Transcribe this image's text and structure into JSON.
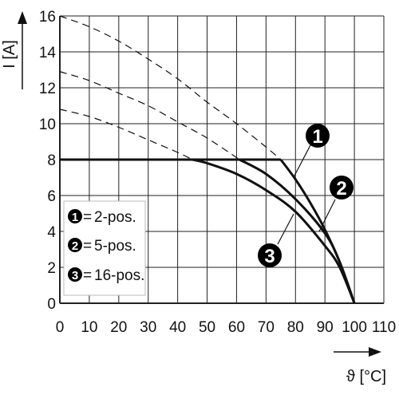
{
  "chart_data": {
    "type": "line",
    "xlabel": "ϑ [°C]",
    "ylabel": "I [A]",
    "xlim": [
      0,
      110
    ],
    "ylim": [
      0,
      16
    ],
    "x_ticks": [
      "0",
      "10",
      "20",
      "30",
      "40",
      "50",
      "60",
      "70",
      "80",
      "90",
      "100",
      "110"
    ],
    "y_ticks": [
      "0",
      "2",
      "4",
      "6",
      "8",
      "10",
      "12",
      "14",
      "16"
    ],
    "grid": true,
    "legend_position": "bottom-left",
    "series": [
      {
        "name": "2-pos.",
        "marker": "1",
        "x": [
          0,
          75,
          80,
          85,
          90,
          95,
          100
        ],
        "y": [
          8,
          8,
          6.9,
          5.6,
          4.1,
          2.3,
          0
        ],
        "extrapolated": {
          "x": [
            0,
            10,
            20,
            30,
            40,
            50,
            60,
            70,
            75
          ],
          "y": [
            16,
            15.4,
            14.6,
            13.6,
            12.5,
            11.2,
            10,
            8.7,
            8
          ]
        }
      },
      {
        "name": "5-pos.",
        "marker": "2",
        "x": [
          0,
          61,
          70,
          80,
          90,
          95,
          100
        ],
        "y": [
          8,
          8,
          7.2,
          5.8,
          3.9,
          2.3,
          0
        ],
        "extrapolated": {
          "x": [
            0,
            10,
            20,
            30,
            40,
            50,
            61
          ],
          "y": [
            12.9,
            12.4,
            11.7,
            11,
            10.1,
            9.2,
            8
          ]
        }
      },
      {
        "name": "16-pos.",
        "marker": "3",
        "x": [
          0,
          45,
          50,
          60,
          70,
          80,
          90,
          95,
          100
        ],
        "y": [
          8,
          8,
          7.8,
          7.2,
          6.3,
          5.1,
          3.2,
          2,
          0
        ],
        "extrapolated": {
          "x": [
            0,
            10,
            20,
            30,
            40,
            45
          ],
          "y": [
            10.8,
            10.4,
            9.8,
            9.1,
            8.4,
            8
          ]
        }
      }
    ],
    "colors": {
      "line": "#111111",
      "grid": "#222222",
      "badge": "#000000"
    }
  }
}
